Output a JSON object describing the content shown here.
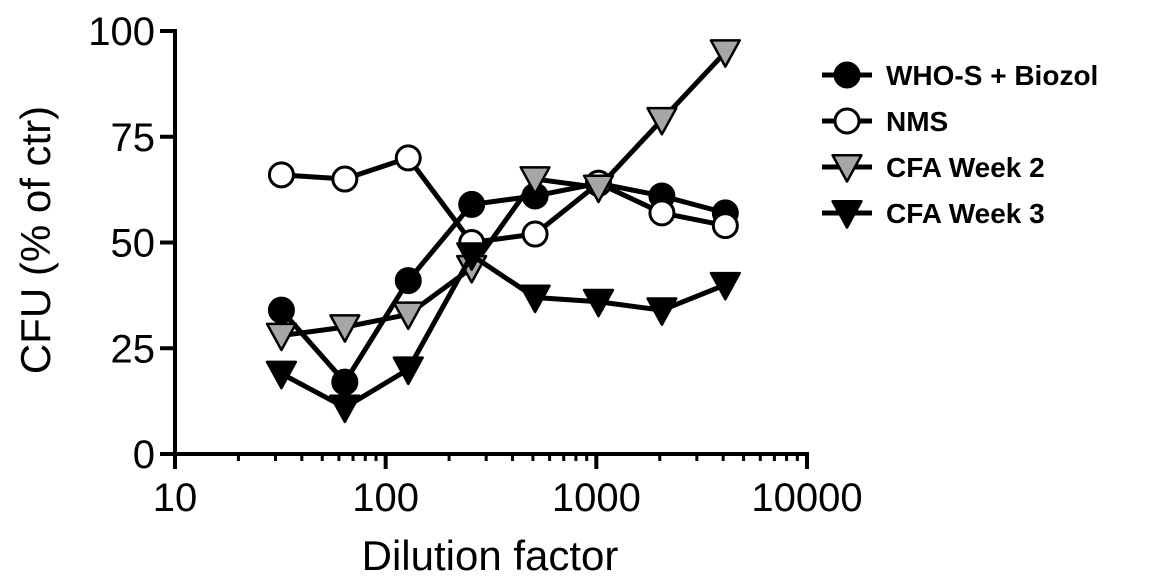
{
  "chart_data": {
    "type": "line",
    "xlabel": "Dilution factor",
    "ylabel": "CFU (% of ctr)",
    "xscale": "log",
    "xlim": [
      10,
      10000
    ],
    "ylim": [
      0,
      100
    ],
    "xticks": [
      10,
      100,
      1000,
      10000
    ],
    "xtick_labels": [
      "10",
      "100",
      "1000",
      "10000"
    ],
    "yticks": [
      0,
      25,
      50,
      75,
      100
    ],
    "ytick_labels": [
      "0",
      "25",
      "50",
      "75",
      "100"
    ],
    "x": [
      32,
      64,
      128,
      256,
      512,
      1024,
      2048,
      4096
    ],
    "legend_position": "right",
    "grid": false,
    "series": [
      {
        "name": "WHO-S + Biozol",
        "marker": "circle",
        "fill": "#000000",
        "values": [
          34,
          17,
          41,
          59,
          61,
          64,
          61,
          57
        ]
      },
      {
        "name": "NMS",
        "marker": "circle",
        "fill": "#ffffff",
        "values": [
          66,
          65,
          70,
          50,
          52,
          64,
          57,
          54
        ]
      },
      {
        "name": "CFA Week 2",
        "marker": "triangle-down",
        "fill": "#a6a6a6",
        "values": [
          28,
          30,
          33,
          44,
          65,
          63,
          79,
          95
        ]
      },
      {
        "name": "CFA Week 3",
        "marker": "triangle-down",
        "fill": "#000000",
        "values": [
          19,
          11,
          20,
          47,
          37,
          36,
          34,
          40
        ]
      }
    ]
  }
}
